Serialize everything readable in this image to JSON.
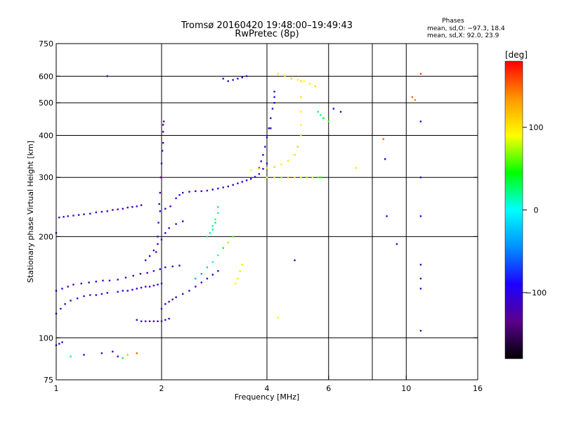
{
  "chart_data": {
    "type": "scatter",
    "title": "Tromsø 20160420 19:48:00–19:49:43",
    "subtitle": "RwPretec (8p)",
    "legend_block": {
      "heading": "Phases",
      "line1": "mean, sd,O: −97.3, 18.4",
      "line2": "mean, sd,X:  92.0, 23.9"
    },
    "xlabel": "Frequency [MHz]",
    "ylabel": "Stationary phase Virtual Height [km]",
    "x_scale": "log",
    "y_scale": "log",
    "xlim": [
      1,
      16
    ],
    "ylim": [
      75,
      750
    ],
    "x_ticks": [
      1,
      2,
      4,
      6,
      10,
      16
    ],
    "x_tick_labels": [
      "1",
      "2",
      "4",
      "6",
      "10",
      "16"
    ],
    "x_gridlines": [
      2,
      4,
      6,
      8,
      10
    ],
    "y_ticks": [
      75,
      100,
      200,
      300,
      400,
      500,
      600,
      750
    ],
    "y_tick_labels": [
      "75",
      "100",
      "200",
      "300",
      "400",
      "500",
      "600",
      "750"
    ],
    "y_gridlines": [
      100,
      200,
      300,
      400,
      500,
      600
    ],
    "colorbar": {
      "unit_label": "[deg]",
      "range": [
        -180,
        180
      ],
      "ticks": [
        100,
        0,
        -100
      ],
      "tick_labels": [
        "100",
        "0",
        "−100"
      ],
      "stops": [
        "#000000",
        "#5a008c",
        "#1e00ff",
        "#0090ff",
        "#00ffff",
        "#00ff00",
        "#ffff00",
        "#ff9600",
        "#ff0000"
      ]
    },
    "series": [
      {
        "x": [
          1.0,
          1.02,
          1.05,
          1.08,
          1.12,
          1.16,
          1.2,
          1.25,
          1.3,
          1.35,
          1.4,
          1.45,
          1.5,
          1.55,
          1.6,
          1.65,
          1.7,
          1.75
        ],
        "y": [
          205,
          228,
          229,
          230,
          231,
          232,
          233,
          234,
          236,
          237,
          238,
          240,
          241,
          242,
          244,
          245,
          246,
          248
        ],
        "phase": [
          -110,
          -115,
          -112,
          -118,
          -110,
          -108,
          -115,
          -112,
          -118,
          -110,
          -120,
          -115,
          -112,
          -108,
          -110,
          -115,
          -118,
          -112
        ]
      },
      {
        "x": [
          1.0,
          1.03,
          1.06,
          1.1,
          1.15,
          1.2,
          1.25,
          1.3,
          1.35,
          1.4,
          1.5,
          1.55,
          1.6,
          1.65,
          1.7,
          1.75,
          1.8,
          1.85,
          1.9,
          1.95,
          2.0
        ],
        "y": [
          118,
          122,
          126,
          129,
          131,
          133,
          134,
          134,
          135,
          136,
          137,
          138,
          138,
          139,
          140,
          141,
          142,
          142,
          143,
          144,
          145
        ],
        "phase": [
          -110,
          -105,
          -112,
          -115,
          -108,
          -110,
          -120,
          -112,
          -105,
          -115,
          -110,
          -108,
          -115,
          -112,
          -110,
          -105,
          -115,
          -110,
          -108,
          -112,
          -110
        ]
      },
      {
        "x": [
          1.0,
          1.04,
          1.08,
          1.12,
          1.18,
          1.24,
          1.3,
          1.36,
          1.42,
          1.5,
          1.58,
          1.66,
          1.74,
          1.82,
          1.9,
          1.98,
          2.05,
          2.15,
          2.25
        ],
        "y": [
          138,
          140,
          142,
          144,
          145,
          146,
          147,
          148,
          148,
          149,
          151,
          153,
          155,
          156,
          158,
          160,
          162,
          163,
          164
        ],
        "phase": [
          -112,
          -108,
          -115,
          -118,
          -110,
          -105,
          -112,
          -115,
          -108,
          -110,
          -120,
          -112,
          -115,
          -108,
          -110,
          -115,
          -112,
          -108,
          -110
        ]
      },
      {
        "x": [
          1.7,
          1.75,
          1.8,
          1.85,
          1.9,
          1.95,
          2.0,
          2.05,
          2.1
        ],
        "y": [
          113,
          112,
          112,
          112,
          112,
          112,
          112,
          113,
          114
        ],
        "phase": [
          -115,
          -110,
          -112,
          -118,
          -108,
          -110,
          -115,
          -112,
          -110
        ]
      },
      {
        "x": [
          2.0,
          2.05,
          2.1,
          2.15,
          2.2,
          2.3,
          2.4,
          2.5,
          2.6,
          2.7,
          2.8,
          2.9
        ],
        "y": [
          122,
          126,
          128,
          130,
          132,
          135,
          138,
          142,
          146,
          150,
          154,
          158
        ],
        "phase": [
          -112,
          -110,
          -108,
          -115,
          -112,
          -110,
          -105,
          -112,
          -110,
          -115,
          -108,
          -110
        ]
      },
      {
        "x": [
          1.8,
          1.85,
          1.9,
          1.95,
          2.0,
          2.05,
          2.1,
          2.2,
          2.3
        ],
        "y": [
          170,
          175,
          182,
          190,
          196,
          205,
          212,
          218,
          222
        ],
        "phase": [
          -100,
          -105,
          -110,
          -115,
          -108,
          -112,
          -110,
          -115,
          -108
        ]
      },
      {
        "x": [
          1.93,
          1.95,
          1.96,
          1.97,
          1.98,
          1.99,
          2.0,
          2.01,
          2.02,
          2.02,
          2.02,
          2.03
        ],
        "y": [
          180,
          200,
          220,
          250,
          270,
          300,
          330,
          360,
          380,
          410,
          430,
          440
        ],
        "phase": [
          -130,
          -120,
          -110,
          -115,
          -125,
          -135,
          -118,
          -105,
          -128,
          -112,
          -118,
          -130
        ]
      },
      {
        "x": [
          1.98,
          2.05,
          2.12,
          2.2,
          2.25,
          2.3,
          2.4,
          2.5,
          2.6,
          2.7,
          2.8,
          2.9,
          3.0,
          3.1,
          3.2,
          3.3,
          3.4,
          3.5,
          3.6,
          3.7,
          3.8,
          3.9,
          4.0
        ],
        "y": [
          238,
          242,
          246,
          260,
          266,
          270,
          272,
          273,
          273,
          274,
          276,
          278,
          280,
          282,
          285,
          288,
          291,
          294,
          297,
          301,
          307,
          318,
          330
        ],
        "phase": [
          -112,
          -110,
          -108,
          -115,
          -110,
          -112,
          -108,
          -110,
          -115,
          -112,
          -110,
          -108,
          -110,
          -112,
          -115,
          -108,
          -110,
          -112,
          -110,
          -108,
          -105,
          -100,
          -95
        ]
      },
      {
        "x": [
          3.8,
          3.85,
          3.9,
          3.95,
          4.0,
          4.05,
          4.1,
          4.15,
          4.2,
          4.2,
          4.2
        ],
        "y": [
          320,
          335,
          350,
          370,
          395,
          420,
          450,
          480,
          500,
          520,
          540
        ],
        "phase": [
          -110,
          -105,
          -100,
          -110,
          -95,
          -100,
          -105,
          -110,
          -100,
          -95,
          -105
        ]
      },
      {
        "x": [
          3.6,
          3.8,
          4.0,
          4.2,
          4.4,
          4.6,
          4.8,
          4.9,
          5.0,
          5.0,
          5.0,
          5.0,
          5.0
        ],
        "y": [
          315,
          318,
          320,
          322,
          328,
          336,
          350,
          370,
          400,
          430,
          470,
          520,
          580
        ],
        "phase": [
          95,
          100,
          105,
          110,
          98,
          102,
          108,
          112,
          100,
          95,
          90,
          105,
          110
        ]
      },
      {
        "x": [
          4.0,
          4.2,
          4.4,
          4.6,
          4.8,
          5.0,
          5.2,
          5.4,
          5.6,
          5.7
        ],
        "y": [
          300,
          300,
          300,
          300,
          300,
          300,
          300,
          300,
          300,
          300
        ],
        "phase": [
          90,
          80,
          70,
          110,
          95,
          85,
          75,
          100,
          60,
          40
        ]
      },
      {
        "x": [
          2.7,
          2.75,
          2.8,
          2.8,
          2.85,
          2.85,
          2.9,
          2.9
        ],
        "y": [
          200,
          205,
          210,
          215,
          220,
          225,
          235,
          245
        ],
        "phase": [
          20,
          15,
          25,
          10,
          30,
          20,
          15,
          25
        ]
      },
      {
        "x": [
          2.5,
          2.6,
          2.7,
          2.8,
          2.9,
          3.0,
          3.1,
          3.2
        ],
        "y": [
          150,
          155,
          162,
          168,
          176,
          185,
          192,
          200
        ],
        "phase": [
          -30,
          -40,
          -20,
          -10,
          10,
          40,
          70,
          60
        ]
      },
      {
        "x": [
          3.25,
          3.3,
          3.35,
          3.4
        ],
        "y": [
          145,
          150,
          158,
          165
        ],
        "phase": [
          90,
          95,
          100,
          85
        ]
      },
      {
        "x": [
          1.1,
          1.2,
          1.35,
          1.45,
          1.5,
          1.55,
          1.6,
          1.7
        ],
        "y": [
          88,
          89,
          90,
          91,
          88,
          87,
          89,
          90
        ],
        "phase": [
          20,
          -100,
          -110,
          -120,
          -115,
          30,
          120,
          150
        ]
      },
      {
        "x": [
          1.0,
          1.02,
          1.04
        ],
        "y": [
          95,
          96,
          97
        ],
        "phase": [
          -110,
          -115,
          -108
        ]
      },
      {
        "x": [
          3.0,
          3.1,
          3.2,
          3.3,
          3.4,
          3.5
        ],
        "y": [
          590,
          580,
          585,
          590,
          595,
          600
        ],
        "phase": [
          -110,
          -115,
          -108,
          -110,
          -115,
          -112
        ]
      },
      {
        "x": [
          4.3,
          4.5,
          4.7,
          4.9,
          5.1,
          5.3,
          5.5
        ],
        "y": [
          610,
          600,
          590,
          585,
          580,
          570,
          560
        ],
        "phase": [
          100,
          105,
          110,
          95,
          90,
          100,
          105
        ]
      },
      {
        "x": [
          5.6,
          5.7,
          5.8,
          6.0
        ],
        "y": [
          470,
          460,
          450,
          440
        ],
        "phase": [
          30,
          20,
          40,
          60
        ]
      },
      {
        "x": [
          6.2,
          6.5,
          7.2,
          8.6,
          8.7,
          8.8,
          9.4
        ],
        "y": [
          480,
          470,
          320,
          390,
          340,
          230,
          190
        ],
        "phase": [
          -110,
          -105,
          100,
          150,
          -110,
          -105,
          -120
        ]
      },
      {
        "x": [
          11.0,
          11.0,
          11.0,
          11.0,
          11.0,
          11.0,
          11.0,
          11.0
        ],
        "y": [
          610,
          440,
          300,
          230,
          165,
          150,
          140,
          105
        ],
        "phase": [
          160,
          -110,
          -105,
          -90,
          -110,
          -115,
          -108,
          -112
        ]
      },
      {
        "x": [
          1.4,
          4.8,
          4.3,
          4.1
        ],
        "y": [
          600,
          170,
          115,
          420
        ],
        "phase": [
          -110,
          -110,
          90,
          -105
        ]
      },
      {
        "x": [
          10.4,
          10.6
        ],
        "y": [
          520,
          510
        ],
        "phase": [
          150,
          140
        ]
      }
    ]
  }
}
